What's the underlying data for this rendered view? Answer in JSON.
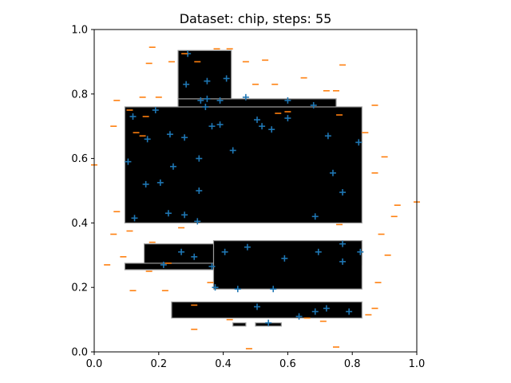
{
  "chart_data": {
    "type": "scatter",
    "title": "Dataset: chip, steps: 55",
    "xlabel": "",
    "ylabel": "",
    "xlim": [
      0.0,
      1.0
    ],
    "ylim": [
      0.0,
      1.0
    ],
    "x_ticks": [
      "0.0",
      "0.2",
      "0.4",
      "0.6",
      "0.8",
      "1.0"
    ],
    "y_ticks": [
      "0.0",
      "0.2",
      "0.4",
      "0.6",
      "0.8",
      "1.0"
    ],
    "grid": false,
    "legend": "none",
    "background_region": {
      "description": "black decision region",
      "color": "#000000",
      "rects": [
        [
          0.095,
          0.4,
          0.83,
          0.76
        ],
        [
          0.26,
          0.76,
          0.75,
          0.785
        ],
        [
          0.26,
          0.785,
          0.425,
          0.935
        ],
        [
          0.155,
          0.27,
          0.83,
          0.335
        ],
        [
          0.095,
          0.255,
          0.375,
          0.275
        ],
        [
          0.37,
          0.195,
          0.83,
          0.345
        ],
        [
          0.24,
          0.105,
          0.83,
          0.155
        ],
        [
          0.43,
          0.08,
          0.47,
          0.09
        ],
        [
          0.5,
          0.08,
          0.58,
          0.09
        ]
      ]
    },
    "series": [
      {
        "name": "",
        "marker": "+",
        "color": "#1f77b4",
        "points": [
          [
            0.29,
            0.925
          ],
          [
            0.285,
            0.83
          ],
          [
            0.35,
            0.84
          ],
          [
            0.41,
            0.848
          ],
          [
            0.47,
            0.79
          ],
          [
            0.33,
            0.78
          ],
          [
            0.35,
            0.785
          ],
          [
            0.39,
            0.78
          ],
          [
            0.19,
            0.75
          ],
          [
            0.12,
            0.73
          ],
          [
            0.345,
            0.76
          ],
          [
            0.365,
            0.7
          ],
          [
            0.39,
            0.705
          ],
          [
            0.505,
            0.72
          ],
          [
            0.52,
            0.7
          ],
          [
            0.55,
            0.69
          ],
          [
            0.6,
            0.78
          ],
          [
            0.6,
            0.725
          ],
          [
            0.68,
            0.765
          ],
          [
            0.725,
            0.67
          ],
          [
            0.82,
            0.65
          ],
          [
            0.165,
            0.66
          ],
          [
            0.235,
            0.675
          ],
          [
            0.28,
            0.665
          ],
          [
            0.43,
            0.625
          ],
          [
            0.105,
            0.59
          ],
          [
            0.325,
            0.6
          ],
          [
            0.245,
            0.575
          ],
          [
            0.74,
            0.555
          ],
          [
            0.16,
            0.52
          ],
          [
            0.205,
            0.525
          ],
          [
            0.325,
            0.5
          ],
          [
            0.77,
            0.495
          ],
          [
            0.125,
            0.415
          ],
          [
            0.23,
            0.43
          ],
          [
            0.28,
            0.425
          ],
          [
            0.32,
            0.405
          ],
          [
            0.685,
            0.42
          ],
          [
            0.27,
            0.31
          ],
          [
            0.31,
            0.295
          ],
          [
            0.405,
            0.31
          ],
          [
            0.475,
            0.325
          ],
          [
            0.215,
            0.27
          ],
          [
            0.365,
            0.265
          ],
          [
            0.59,
            0.29
          ],
          [
            0.695,
            0.31
          ],
          [
            0.77,
            0.335
          ],
          [
            0.77,
            0.28
          ],
          [
            0.825,
            0.31
          ],
          [
            0.375,
            0.2
          ],
          [
            0.445,
            0.195
          ],
          [
            0.555,
            0.195
          ],
          [
            0.505,
            0.14
          ],
          [
            0.635,
            0.11
          ],
          [
            0.685,
            0.125
          ],
          [
            0.72,
            0.135
          ],
          [
            0.79,
            0.125
          ],
          [
            0.54,
            0.09
          ]
        ]
      },
      {
        "name": "",
        "marker": "_",
        "color": "#ff7f0e",
        "points": [
          [
            0.18,
            0.945
          ],
          [
            0.38,
            0.94
          ],
          [
            0.42,
            0.94
          ],
          [
            0.28,
            0.925
          ],
          [
            0.17,
            0.895
          ],
          [
            0.24,
            0.9
          ],
          [
            0.32,
            0.9
          ],
          [
            0.47,
            0.9
          ],
          [
            0.53,
            0.905
          ],
          [
            0.77,
            0.89
          ],
          [
            0.65,
            0.85
          ],
          [
            0.5,
            0.83
          ],
          [
            0.56,
            0.83
          ],
          [
            0.72,
            0.81
          ],
          [
            0.75,
            0.81
          ],
          [
            0.07,
            0.78
          ],
          [
            0.15,
            0.79
          ],
          [
            0.2,
            0.79
          ],
          [
            0.87,
            0.765
          ],
          [
            0.11,
            0.75
          ],
          [
            0.16,
            0.73
          ],
          [
            0.6,
            0.745
          ],
          [
            0.76,
            0.735
          ],
          [
            0.13,
            0.68
          ],
          [
            0.57,
            0.74
          ],
          [
            0.84,
            0.68
          ],
          [
            0.06,
            0.7
          ],
          [
            0.15,
            0.67
          ],
          [
            0.9,
            0.605
          ],
          [
            0.87,
            0.555
          ],
          [
            0.0,
            0.58
          ],
          [
            0.07,
            0.435
          ],
          [
            0.94,
            0.455
          ],
          [
            0.93,
            0.42
          ],
          [
            0.11,
            0.375
          ],
          [
            1.0,
            0.465
          ],
          [
            0.06,
            0.365
          ],
          [
            0.89,
            0.365
          ],
          [
            0.76,
            0.395
          ],
          [
            0.27,
            0.385
          ],
          [
            0.18,
            0.34
          ],
          [
            0.09,
            0.295
          ],
          [
            0.04,
            0.27
          ],
          [
            0.23,
            0.275
          ],
          [
            0.91,
            0.3
          ],
          [
            0.17,
            0.25
          ],
          [
            0.88,
            0.215
          ],
          [
            0.36,
            0.215
          ],
          [
            0.22,
            0.19
          ],
          [
            0.12,
            0.19
          ],
          [
            0.87,
            0.135
          ],
          [
            0.31,
            0.145
          ],
          [
            0.85,
            0.115
          ],
          [
            0.66,
            0.105
          ],
          [
            0.42,
            0.1
          ],
          [
            0.31,
            0.07
          ],
          [
            0.71,
            0.095
          ],
          [
            0.48,
            0.01
          ],
          [
            0.75,
            0.015
          ]
        ]
      }
    ]
  }
}
